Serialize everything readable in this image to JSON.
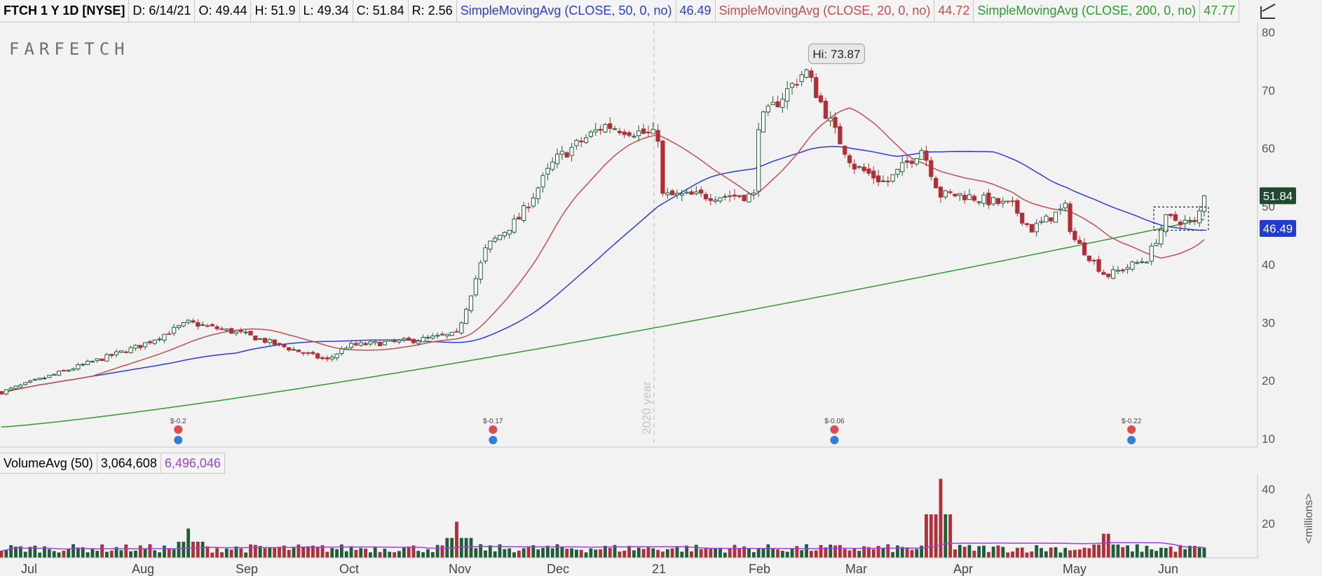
{
  "header": {
    "symbol": "FTCH 1 Y 1D [NYSE]",
    "date": "D: 6/14/21",
    "open": "O: 49.44",
    "high": "H: 51.9",
    "low": "L: 49.34",
    "close": "C: 51.84",
    "range": "R: 2.56",
    "sma50_label": "SimpleMovingAvg (CLOSE, 50, 0, no)",
    "sma50_value": "46.49",
    "sma20_label": "SimpleMovingAvg (CLOSE, 20, 0, no)",
    "sma20_value": "44.72",
    "sma200_label": "SimpleMovingAvg (CLOSE, 200, 0, no)",
    "sma200_value": "47.77"
  },
  "logo": "FARFETCH",
  "volume_header": {
    "label": "VolumeAvg (50)",
    "volume": "3,064,608",
    "average": "6,496,046"
  },
  "colors": {
    "up": "#1e5c3a",
    "down": "#b22d35",
    "sma50": "#2b3bde",
    "sma20": "#c0504d",
    "sma200": "#2f9a2f",
    "volavg": "#a040e0",
    "text_dark": "#222222",
    "price_close_badge": "#1f4a2f",
    "price_sma_badge": "#1f3bd8"
  },
  "icons": {
    "settings": "chart-settings-icon",
    "earnings": "earnings-alarm-icon",
    "pin": "info-pin-icon"
  },
  "chart_data": [
    {
      "type": "candlestick",
      "title": "FTCH 1 Y 1D [NYSE]",
      "x": [
        "Jul",
        "Aug",
        "Sep",
        "Oct",
        "Nov",
        "Dec",
        "21",
        "Feb",
        "Mar",
        "Apr",
        "May",
        "Jun"
      ],
      "ylim": [
        10,
        82
      ],
      "y_ticks": [
        10,
        20,
        30,
        40,
        50,
        60,
        70,
        80
      ],
      "y_axis_position": "right",
      "approx_close_path": [
        {
          "x": "Jul",
          "y": 18
        },
        {
          "x": "Aug",
          "y": 26
        },
        {
          "x": "Aug 15",
          "y": 30
        },
        {
          "x": "Sep",
          "y": 28
        },
        {
          "x": "Sep 25",
          "y": 23.5
        },
        {
          "x": "Oct",
          "y": 26
        },
        {
          "x": "Oct 20",
          "y": 27
        },
        {
          "x": "Nov",
          "y": 28
        },
        {
          "x": "Nov 10",
          "y": 43
        },
        {
          "x": "Nov 20",
          "y": 48
        },
        {
          "x": "Dec",
          "y": 58
        },
        {
          "x": "Dec 15",
          "y": 64
        },
        {
          "x": "21",
          "y": 62
        },
        {
          "x": "Jan 20",
          "y": 58
        },
        {
          "x": "Feb",
          "y": 64
        },
        {
          "x": "Feb 16",
          "y": 73.5
        },
        {
          "x": "Feb 25",
          "y": 63
        },
        {
          "x": "Mar",
          "y": 57
        },
        {
          "x": "Mar 10",
          "y": 54
        },
        {
          "x": "Mar 20",
          "y": 60
        },
        {
          "x": "Mar 25",
          "y": 52
        },
        {
          "x": "Apr",
          "y": 52
        },
        {
          "x": "Apr 15",
          "y": 50
        },
        {
          "x": "Apr 20",
          "y": 46
        },
        {
          "x": "Apr 30",
          "y": 50
        },
        {
          "x": "May",
          "y": 45
        },
        {
          "x": "May 12",
          "y": 38
        },
        {
          "x": "May 25",
          "y": 41
        },
        {
          "x": "Jun",
          "y": 48
        },
        {
          "x": "Jun 10",
          "y": 47
        },
        {
          "x": "Jun 14",
          "y": 51.84
        }
      ],
      "series": [
        {
          "name": "SimpleMovingAvg (CLOSE, 50, 0, no)",
          "last": 46.49
        },
        {
          "name": "SimpleMovingAvg (CLOSE, 20, 0, no)",
          "last": 44.72
        },
        {
          "name": "SimpleMovingAvg (CLOSE, 200, 0, no)",
          "last": 47.77
        }
      ],
      "annotations": {
        "high_label": "Hi: 73.87",
        "year_marker": "2020 year",
        "earnings": [
          {
            "x": "Aug 12",
            "label": "$-0.2"
          },
          {
            "x": "Nov 12",
            "label": "$-0.17"
          },
          {
            "x": "Feb 25",
            "label": "$-0.06"
          },
          {
            "x": "May 20",
            "label": "$-0.22"
          }
        ],
        "last_close_badge": "51.84",
        "sma_badge": "46.49"
      },
      "grid": false
    },
    {
      "type": "bar",
      "title": "VolumeAvg (50)",
      "ylabel": "<millions>",
      "ylim": [
        0,
        50
      ],
      "y_ticks": [
        0,
        20,
        40
      ],
      "tick_labels": [
        "20",
        "40"
      ],
      "approx_spikes": [
        {
          "x": "Aug 15",
          "value": 17
        },
        {
          "x": "Nov",
          "value": 21
        },
        {
          "x": "Mar 25",
          "value": 46
        },
        {
          "x": "May 12",
          "value": 14
        }
      ],
      "series": [
        {
          "name": "VolumeAvg (50)",
          "last": 6.5
        }
      ]
    }
  ]
}
